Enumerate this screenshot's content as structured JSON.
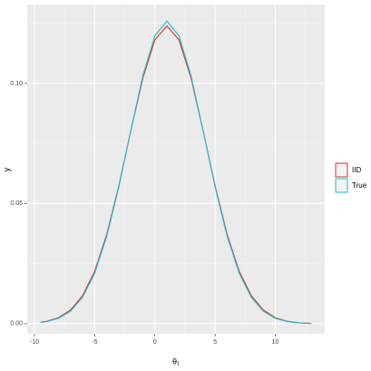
{
  "chart_data": {
    "type": "line",
    "x_label": "θ₁",
    "y_label": "y",
    "x": [
      -9.5,
      -9,
      -8,
      -7,
      -6,
      -5,
      -4,
      -3,
      -2,
      -1,
      0,
      1,
      2,
      3,
      4,
      5,
      6,
      7,
      8,
      9,
      10,
      11,
      12,
      13
    ],
    "series": [
      {
        "name": "IID",
        "color": "#d9312b",
        "values": [
          0.00061,
          0.001,
          0.0025,
          0.0057,
          0.0117,
          0.0218,
          0.0371,
          0.0573,
          0.0803,
          0.1022,
          0.1181,
          0.1239,
          0.1181,
          0.1022,
          0.0803,
          0.0573,
          0.0371,
          0.0218,
          0.0117,
          0.0057,
          0.0025,
          0.001,
          0.00036,
          0.00012
        ]
      },
      {
        "name": "True",
        "color": "#22bccb",
        "values": [
          0.00052,
          0.00087,
          0.00224,
          0.0052,
          0.011,
          0.021,
          0.0363,
          0.0568,
          0.0804,
          0.1032,
          0.1198,
          0.1259,
          0.1198,
          0.1032,
          0.0804,
          0.0568,
          0.0363,
          0.021,
          0.011,
          0.0052,
          0.00224,
          0.00087,
          0.00031,
          0.0001
        ]
      }
    ],
    "xlim": [
      -10.6,
      14.1
    ],
    "ylim": [
      -0.0042,
      0.1328
    ],
    "xticks": [
      -10,
      -5,
      0,
      5,
      10
    ],
    "minor_xticks": [
      -7.5,
      -2.5,
      2.5,
      7.5,
      12.5
    ],
    "yticks": [
      {
        "value": 0,
        "label": "0.00"
      },
      {
        "value": 0.05,
        "label": "0.05"
      },
      {
        "value": 0.1,
        "label": "0.10"
      }
    ],
    "minor_yticks": [
      0.025,
      0.075,
      0.125
    ],
    "grid": true,
    "legend_position": "right"
  }
}
